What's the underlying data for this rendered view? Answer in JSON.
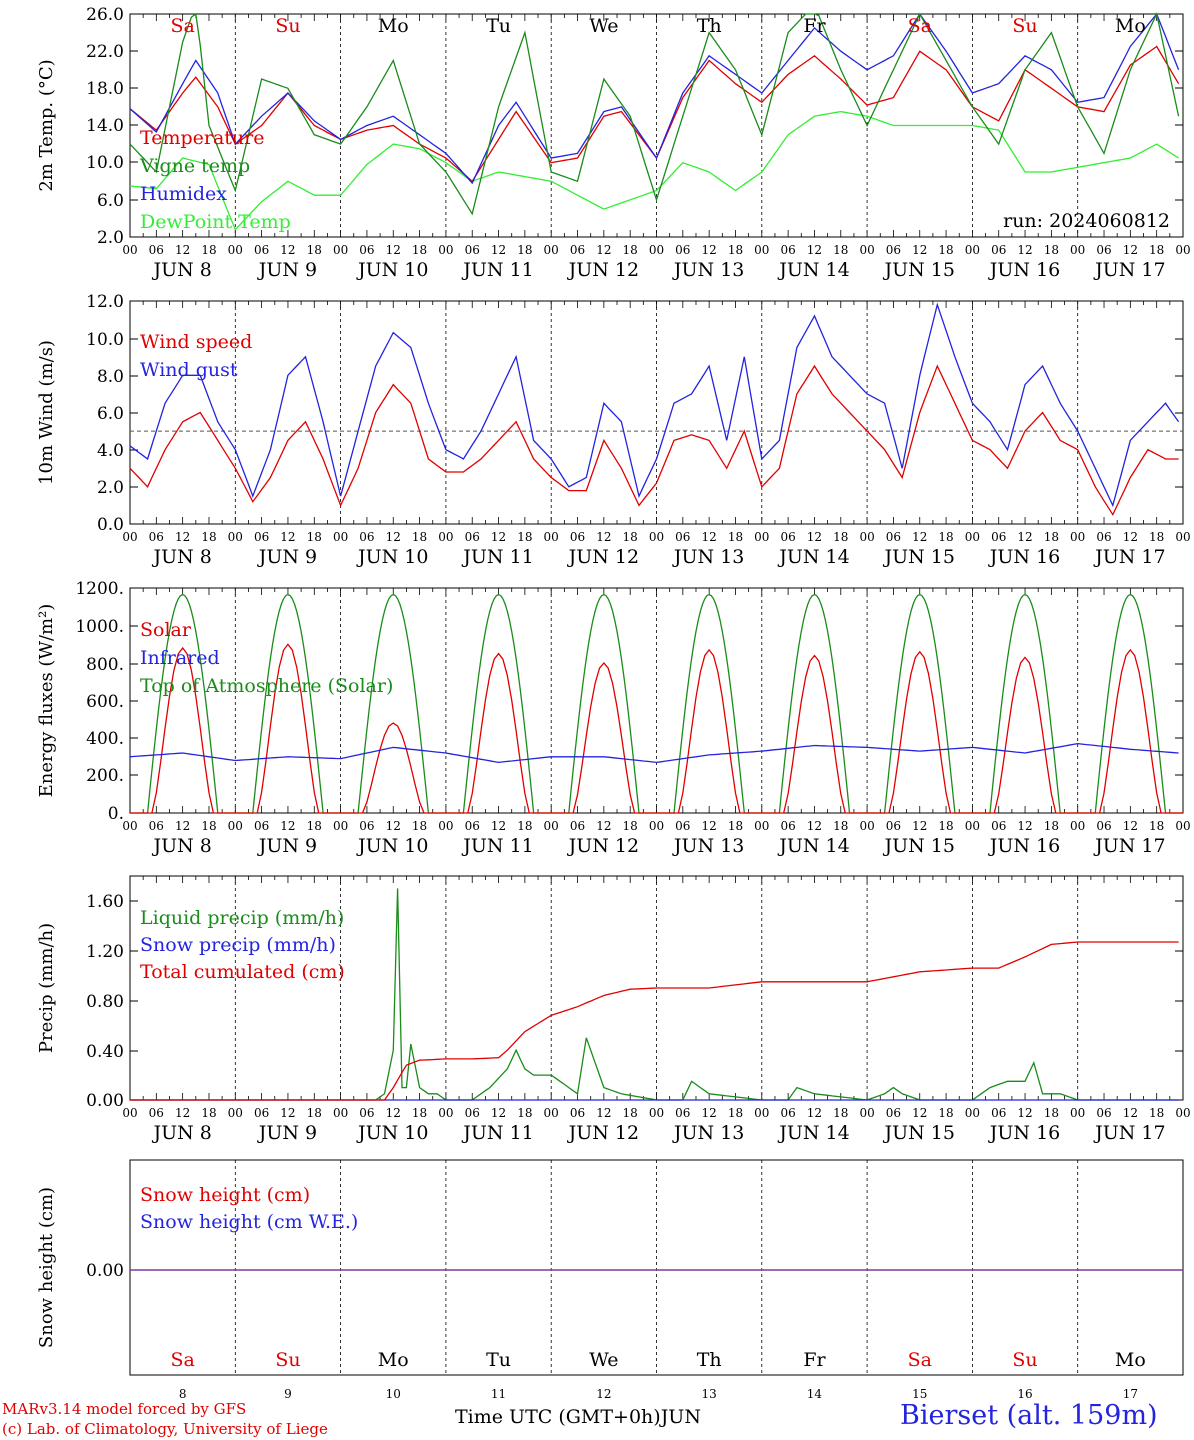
{
  "run": "run: 2024060812",
  "days": {
    "dates": [
      "JUN  8",
      "JUN  9",
      "JUN 10",
      "JUN 11",
      "JUN 12",
      "JUN 13",
      "JUN 14",
      "JUN 15",
      "JUN 16",
      "JUN 17"
    ],
    "day_numbers": [
      "8",
      "9",
      "10",
      "11",
      "12",
      "13",
      "14",
      "15",
      "16",
      "17"
    ],
    "weekdays": [
      "Sa",
      "Su",
      "Mo",
      "Tu",
      "We",
      "Th",
      "Fr",
      "Sa",
      "Su",
      "Mo"
    ],
    "weekend_flags": [
      true,
      true,
      false,
      false,
      false,
      false,
      false,
      true,
      true,
      false
    ],
    "hour_ticks": [
      "00",
      "06",
      "12",
      "18"
    ],
    "end_tick": "00"
  },
  "footer": {
    "credit_line1": "MARv3.14 model forced by GFS",
    "credit_line2": "(c) Lab. of Climatology, University of Liege",
    "xlabel": "Time UTC (GMT+0h)JUN",
    "station": "Bierset (alt. 159m)"
  },
  "colors": {
    "red": "#e00000",
    "blue": "#2323e0",
    "green": "#1a8c1a",
    "lightgreen": "#33ee33",
    "purple": "#7a3aa0",
    "weekend": "#e00000"
  },
  "chart_data": [
    {
      "type": "line",
      "ylabel": "2m Temp. (°C)",
      "ylim": [
        2.0,
        26.0
      ],
      "ytick_labels": [
        "2.0",
        "6.0",
        "10.0",
        "14.0",
        "18.0",
        "22.0",
        "26.0"
      ],
      "x_unit": "hours from Jun 8 00 UTC",
      "series": [
        {
          "name": "Temperature",
          "color_key": "red",
          "x": [
            0,
            6,
            12,
            15,
            20,
            24,
            30,
            36,
            42,
            48,
            54,
            60,
            66,
            72,
            78,
            84,
            88,
            96,
            102,
            108,
            112,
            120,
            126,
            132,
            138,
            144,
            150,
            156,
            162,
            168,
            174,
            180,
            186,
            192,
            198,
            204,
            210,
            216,
            222,
            228,
            234,
            239
          ],
          "values": [
            15.8,
            13.5,
            17.5,
            19.2,
            16.0,
            12.0,
            14.0,
            17.5,
            14.0,
            12.5,
            13.5,
            14.0,
            12.0,
            10.5,
            8.0,
            12.5,
            15.5,
            10.0,
            10.5,
            15.0,
            15.5,
            10.5,
            17.0,
            21.0,
            18.5,
            16.5,
            19.5,
            21.5,
            19.0,
            16.2,
            17.0,
            22.0,
            20.0,
            16.0,
            14.5,
            20.0,
            18.0,
            16.0,
            15.5,
            20.5,
            22.5,
            18.5
          ]
        },
        {
          "name": "Vigne temp",
          "color_key": "green",
          "x": [
            0,
            6,
            12,
            15,
            18,
            24,
            30,
            36,
            42,
            48,
            54,
            60,
            66,
            72,
            78,
            84,
            90,
            96,
            102,
            108,
            114,
            120,
            126,
            132,
            138,
            144,
            150,
            156,
            162,
            168,
            174,
            180,
            186,
            192,
            198,
            204,
            210,
            216,
            222,
            228,
            234,
            239
          ],
          "values": [
            12.0,
            9.0,
            23.0,
            27.0,
            14.0,
            7.0,
            19.0,
            18.0,
            13.0,
            12.0,
            16.0,
            21.0,
            12.0,
            9.0,
            4.5,
            16.0,
            24.0,
            9.0,
            8.0,
            19.0,
            15.0,
            6.0,
            15.0,
            24.0,
            20.0,
            13.0,
            24.0,
            27.0,
            20.0,
            14.0,
            20.0,
            26.0,
            21.0,
            16.0,
            12.0,
            20.0,
            24.0,
            16.0,
            11.0,
            20.0,
            26.0,
            15.0
          ]
        },
        {
          "name": "Humidex",
          "color_key": "blue",
          "x": [
            0,
            6,
            12,
            15,
            20,
            24,
            30,
            36,
            42,
            48,
            54,
            60,
            66,
            72,
            78,
            84,
            88,
            96,
            102,
            108,
            112,
            120,
            126,
            132,
            138,
            144,
            150,
            156,
            162,
            168,
            174,
            180,
            186,
            192,
            198,
            204,
            210,
            216,
            222,
            228,
            234,
            239
          ],
          "values": [
            15.8,
            13.3,
            18.5,
            21.0,
            17.5,
            12.0,
            15.0,
            17.5,
            14.5,
            12.5,
            14.0,
            15.0,
            13.0,
            11.0,
            7.8,
            14.0,
            16.5,
            10.5,
            11.0,
            15.5,
            16.0,
            10.5,
            17.5,
            21.5,
            19.5,
            17.5,
            21.0,
            24.5,
            22.0,
            20.0,
            21.5,
            26.0,
            22.0,
            17.5,
            18.5,
            21.5,
            20.0,
            16.5,
            17.0,
            22.5,
            26.0,
            20.0
          ]
        },
        {
          "name": "DewPoint Temp",
          "color_key": "lightgreen",
          "x": [
            0,
            6,
            12,
            18,
            24,
            30,
            36,
            42,
            48,
            54,
            60,
            66,
            72,
            78,
            84,
            90,
            96,
            102,
            108,
            114,
            120,
            126,
            132,
            138,
            144,
            150,
            156,
            162,
            168,
            174,
            180,
            186,
            192,
            198,
            204,
            210,
            216,
            222,
            228,
            234,
            239
          ],
          "values": [
            7.5,
            7.2,
            10.5,
            9.8,
            2.8,
            5.8,
            8.0,
            6.5,
            6.5,
            9.8,
            12.0,
            11.5,
            10.0,
            8.0,
            9.0,
            8.5,
            8.0,
            6.5,
            5.0,
            6.0,
            7.0,
            10.0,
            9.0,
            7.0,
            9.0,
            13.0,
            15.0,
            15.5,
            15.0,
            14.0,
            14.0,
            14.0,
            14.0,
            13.5,
            9.0,
            9.0,
            9.5,
            10.0,
            10.5,
            12.0,
            10.5
          ]
        }
      ]
    },
    {
      "type": "line",
      "ylabel": "10m Wind (m/s)",
      "ylim": [
        0.0,
        12.0
      ],
      "ytick_labels": [
        "0.0",
        "2.0",
        "4.0",
        "6.0",
        "8.0",
        "10.0",
        "12.0"
      ],
      "reference_line": 5.0,
      "series": [
        {
          "name": "Wind speed",
          "color_key": "red",
          "x": [
            0,
            4,
            8,
            12,
            16,
            20,
            24,
            28,
            32,
            36,
            40,
            44,
            48,
            52,
            56,
            60,
            64,
            68,
            72,
            76,
            80,
            84,
            88,
            92,
            96,
            100,
            104,
            108,
            112,
            116,
            120,
            124,
            128,
            132,
            136,
            140,
            144,
            148,
            152,
            156,
            160,
            164,
            168,
            172,
            176,
            180,
            184,
            188,
            192,
            196,
            200,
            204,
            208,
            212,
            216,
            220,
            224,
            228,
            232,
            236,
            239
          ],
          "values": [
            3.0,
            2.0,
            4.0,
            5.5,
            6.0,
            4.5,
            3.0,
            1.2,
            2.5,
            4.5,
            5.5,
            3.5,
            1.0,
            3.0,
            6.0,
            7.5,
            6.5,
            3.5,
            2.8,
            2.8,
            3.5,
            4.5,
            5.5,
            3.5,
            2.5,
            1.8,
            1.8,
            4.5,
            3.0,
            1.0,
            2.2,
            4.5,
            4.8,
            4.5,
            3.0,
            5.0,
            2.0,
            3.0,
            7.0,
            8.5,
            7.0,
            6.0,
            5.0,
            4.0,
            2.5,
            6.0,
            8.5,
            6.5,
            4.5,
            4.0,
            3.0,
            5.0,
            6.0,
            4.5,
            4.0,
            2.0,
            0.5,
            2.5,
            4.0,
            3.5,
            3.5
          ]
        },
        {
          "name": "Wind gust",
          "color_key": "blue",
          "x": [
            0,
            4,
            8,
            12,
            16,
            20,
            24,
            28,
            32,
            36,
            40,
            44,
            48,
            52,
            56,
            60,
            64,
            68,
            72,
            76,
            80,
            84,
            88,
            92,
            96,
            100,
            104,
            108,
            112,
            116,
            120,
            124,
            128,
            132,
            136,
            140,
            144,
            148,
            152,
            156,
            160,
            164,
            168,
            172,
            176,
            180,
            184,
            188,
            192,
            196,
            200,
            204,
            208,
            212,
            216,
            220,
            224,
            228,
            232,
            236,
            239
          ],
          "values": [
            4.2,
            3.5,
            6.5,
            8.0,
            8.0,
            5.5,
            4.0,
            1.5,
            4.0,
            8.0,
            9.0,
            5.5,
            1.5,
            5.0,
            8.5,
            10.3,
            9.5,
            6.5,
            4.0,
            3.5,
            5.0,
            7.0,
            9.0,
            4.5,
            3.5,
            2.0,
            2.5,
            6.5,
            5.5,
            1.5,
            3.5,
            6.5,
            7.0,
            8.5,
            4.5,
            9.0,
            3.5,
            4.5,
            9.5,
            11.2,
            9.0,
            8.0,
            7.0,
            6.5,
            3.0,
            8.0,
            11.8,
            9.0,
            6.5,
            5.5,
            4.0,
            7.5,
            8.5,
            6.5,
            5.0,
            3.0,
            1.0,
            4.5,
            5.5,
            6.5,
            5.5
          ]
        }
      ]
    },
    {
      "type": "line",
      "ylabel": "Energy fluxes (W/m²)",
      "ylim": [
        0,
        1200
      ],
      "ytick_labels": [
        "0.",
        "200.",
        "400.",
        "600.",
        "800.",
        "1000.",
        "1200."
      ],
      "series": [
        {
          "name": "Solar",
          "color_key": "red",
          "peaks": [
            880,
            900,
            480,
            850,
            800,
            870,
            840,
            860,
            830,
            870
          ],
          "x_note": "daily cycles peaking near 12 UTC"
        },
        {
          "name": "Infrared",
          "color_key": "blue",
          "x": [
            0,
            12,
            24,
            36,
            48,
            60,
            72,
            84,
            96,
            108,
            120,
            132,
            144,
            156,
            168,
            180,
            192,
            204,
            216,
            228,
            239
          ],
          "values": [
            300,
            320,
            280,
            300,
            290,
            350,
            320,
            270,
            300,
            300,
            270,
            310,
            330,
            360,
            350,
            330,
            350,
            320,
            370,
            340,
            320
          ]
        },
        {
          "name": "Top of Atmosphere (Solar)",
          "color_key": "green",
          "peaks": [
            1165,
            1165,
            1165,
            1165,
            1165,
            1165,
            1165,
            1165,
            1165,
            1165
          ]
        }
      ]
    },
    {
      "type": "line",
      "ylabel": "Precip (mm/h)",
      "ylim": [
        0.0,
        1.8
      ],
      "ytick_labels": [
        "0.00",
        "0.40",
        "0.80",
        "1.20",
        "1.60"
      ],
      "series": [
        {
          "name": "Liquid precip (mm/h)",
          "color_key": "green",
          "x": [
            0,
            56,
            58,
            60,
            61,
            62,
            63,
            64,
            66,
            68,
            70,
            72,
            78,
            82,
            86,
            88,
            90,
            92,
            96,
            100,
            102,
            104,
            108,
            112,
            120,
            126,
            128,
            132,
            144,
            150,
            152,
            156,
            168,
            172,
            174,
            176,
            180,
            186,
            192,
            196,
            200,
            204,
            206,
            208,
            212,
            216,
            239
          ],
          "values": [
            0,
            0,
            0.05,
            0.4,
            1.7,
            0.1,
            0.1,
            0.45,
            0.1,
            0.05,
            0.05,
            0,
            0,
            0.1,
            0.25,
            0.4,
            0.25,
            0.2,
            0.2,
            0.1,
            0.05,
            0.5,
            0.1,
            0.05,
            0,
            0,
            0.15,
            0.05,
            0,
            0,
            0.1,
            0.05,
            0,
            0.05,
            0.1,
            0.05,
            0,
            0,
            0,
            0.1,
            0.15,
            0.15,
            0.3,
            0.05,
            0.05,
            0,
            0
          ]
        },
        {
          "name": "Snow precip (mm/h)",
          "color_key": "blue",
          "x": [
            0,
            239
          ],
          "values": [
            0,
            0
          ]
        },
        {
          "name": "Total cumulated (cm)",
          "color_key": "red",
          "x": [
            0,
            58,
            60,
            63,
            66,
            72,
            78,
            84,
            86,
            90,
            96,
            102,
            108,
            114,
            120,
            132,
            144,
            156,
            168,
            180,
            192,
            198,
            204,
            210,
            216,
            228,
            239
          ],
          "values": [
            0,
            0,
            0.1,
            0.28,
            0.32,
            0.33,
            0.33,
            0.34,
            0.4,
            0.55,
            0.68,
            0.75,
            0.84,
            0.89,
            0.9,
            0.9,
            0.95,
            0.95,
            0.95,
            1.03,
            1.06,
            1.06,
            1.15,
            1.25,
            1.27,
            1.27,
            1.27
          ]
        }
      ]
    },
    {
      "type": "line",
      "ylabel": "Snow height (cm)",
      "ytick_labels": [
        "0.00"
      ],
      "series": [
        {
          "name": "Snow height (cm)",
          "color_key": "red",
          "x": [
            0,
            239
          ],
          "values": [
            0,
            0
          ]
        },
        {
          "name": "Snow height (cm W.E.)",
          "color_key": "blue",
          "x": [
            0,
            239
          ],
          "values": [
            0,
            0
          ]
        }
      ]
    }
  ]
}
